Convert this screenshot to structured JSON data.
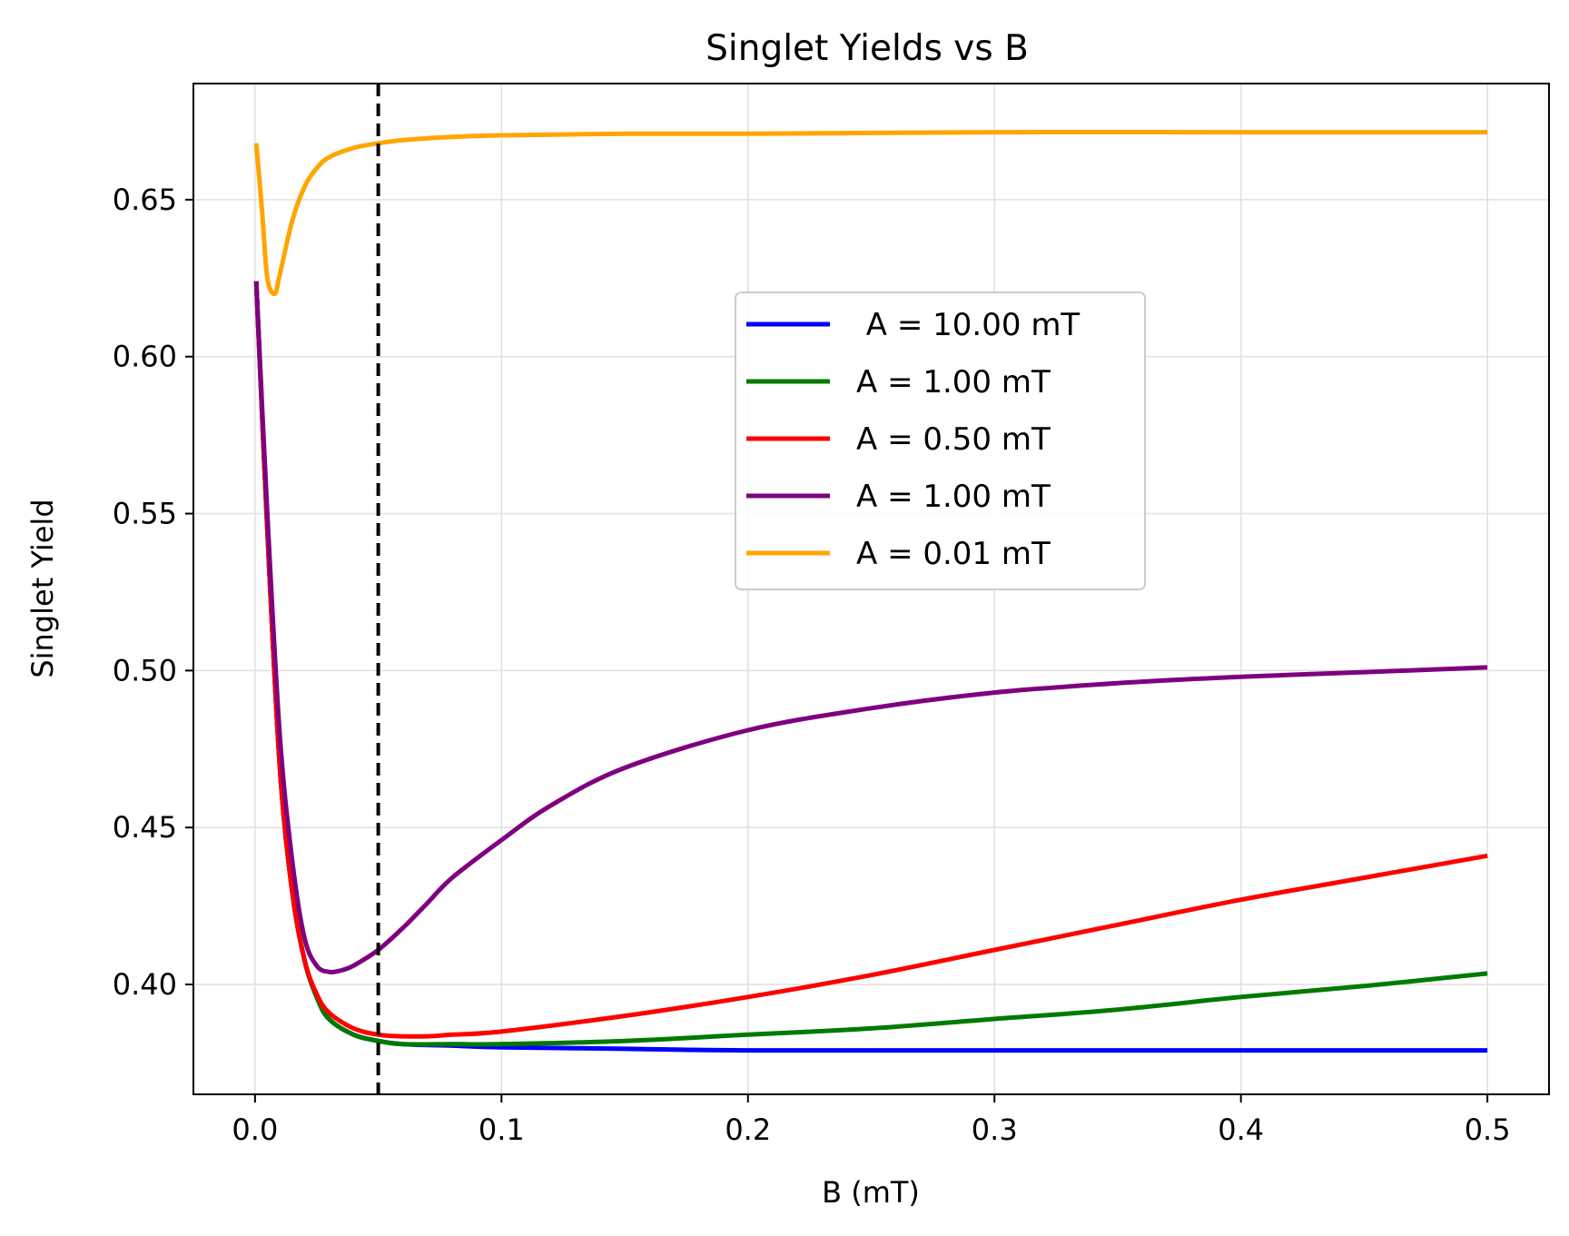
{
  "chart_data": {
    "type": "line",
    "title": "Singlet Yields vs B",
    "xlabel": "B (mT)",
    "ylabel": "Singlet Yield",
    "xlim": [
      -0.025,
      0.525
    ],
    "ylim": [
      0.365,
      0.687
    ],
    "xticks": [
      0.0,
      0.1,
      0.2,
      0.3,
      0.4,
      0.5
    ],
    "xtick_labels": [
      "0.0",
      "0.1",
      "0.2",
      "0.3",
      "0.4",
      "0.5"
    ],
    "yticks": [
      0.4,
      0.45,
      0.5,
      0.55,
      0.6,
      0.65
    ],
    "ytick_labels": [
      "0.40",
      "0.45",
      "0.50",
      "0.55",
      "0.60",
      "0.65"
    ],
    "grid": true,
    "legend_position": "center-right",
    "vline": {
      "x": 0.05,
      "style": "dashed",
      "color": "#000000"
    },
    "series": [
      {
        "name": " A = 10.00 mT",
        "color": "#0000ff",
        "x": [
          0.0005,
          0.005,
          0.01,
          0.015,
          0.02,
          0.025,
          0.03,
          0.04,
          0.05,
          0.06,
          0.08,
          0.1,
          0.15,
          0.2,
          0.3,
          0.4,
          0.5
        ],
        "y": [
          0.624,
          0.545,
          0.47,
          0.43,
          0.408,
          0.396,
          0.389,
          0.384,
          0.382,
          0.381,
          0.3805,
          0.38,
          0.3795,
          0.379,
          0.379,
          0.379,
          0.379
        ]
      },
      {
        "name": "A = 1.00 mT",
        "color": "#007a00",
        "x": [
          0.0005,
          0.005,
          0.01,
          0.015,
          0.02,
          0.025,
          0.03,
          0.04,
          0.05,
          0.06,
          0.08,
          0.1,
          0.15,
          0.2,
          0.25,
          0.3,
          0.35,
          0.4,
          0.45,
          0.5
        ],
        "y": [
          0.624,
          0.545,
          0.47,
          0.43,
          0.408,
          0.396,
          0.389,
          0.384,
          0.382,
          0.381,
          0.381,
          0.381,
          0.382,
          0.384,
          0.386,
          0.389,
          0.392,
          0.396,
          0.3995,
          0.4035
        ]
      },
      {
        "name": "A = 0.50 mT",
        "color": "#ff0000",
        "x": [
          0.0005,
          0.005,
          0.01,
          0.015,
          0.02,
          0.025,
          0.03,
          0.04,
          0.05,
          0.06,
          0.07,
          0.08,
          0.1,
          0.15,
          0.2,
          0.25,
          0.3,
          0.35,
          0.4,
          0.45,
          0.5
        ],
        "y": [
          0.624,
          0.545,
          0.47,
          0.43,
          0.408,
          0.397,
          0.391,
          0.386,
          0.384,
          0.3835,
          0.3835,
          0.384,
          0.385,
          0.39,
          0.396,
          0.403,
          0.411,
          0.419,
          0.427,
          0.434,
          0.441
        ]
      },
      {
        "name": "A = 1.00 mT",
        "color": "#7f007f",
        "x": [
          0.0005,
          0.005,
          0.01,
          0.015,
          0.02,
          0.025,
          0.03,
          0.035,
          0.04,
          0.05,
          0.06,
          0.07,
          0.08,
          0.1,
          0.12,
          0.15,
          0.2,
          0.25,
          0.3,
          0.35,
          0.4,
          0.45,
          0.5
        ],
        "y": [
          0.624,
          0.55,
          0.48,
          0.44,
          0.415,
          0.406,
          0.404,
          0.4045,
          0.406,
          0.411,
          0.418,
          0.426,
          0.434,
          0.446,
          0.457,
          0.469,
          0.481,
          0.488,
          0.493,
          0.496,
          0.498,
          0.4995,
          0.501
        ]
      },
      {
        "name": "A = 0.01 mT",
        "color": "#ffa500",
        "x": [
          0.0005,
          0.003,
          0.005,
          0.008,
          0.01,
          0.015,
          0.02,
          0.025,
          0.03,
          0.04,
          0.05,
          0.06,
          0.08,
          0.1,
          0.15,
          0.2,
          0.3,
          0.4,
          0.5
        ],
        "y": [
          0.668,
          0.645,
          0.625,
          0.62,
          0.626,
          0.643,
          0.654,
          0.66,
          0.6635,
          0.6665,
          0.668,
          0.669,
          0.67,
          0.6705,
          0.671,
          0.671,
          0.6715,
          0.6715,
          0.6715
        ]
      }
    ]
  }
}
